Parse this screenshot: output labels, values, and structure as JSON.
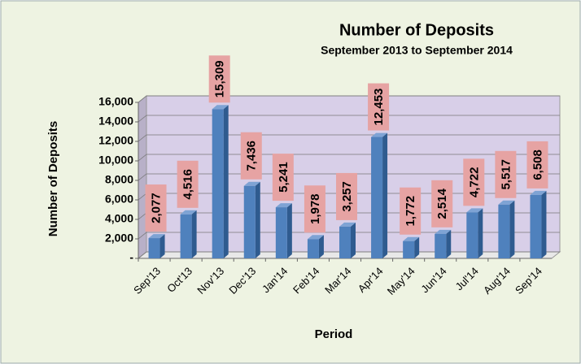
{
  "chart_data": {
    "type": "bar",
    "title": "Number of Deposits",
    "subtitle": "September 2013 to September 2014",
    "x_label": "Period",
    "y_label": "Number of Deposits",
    "categories": [
      "Sep'13",
      "Oct'13",
      "Nov'13",
      "Dec'13",
      "Jan'14",
      "Feb'14",
      "Mar'14",
      "Apr'14",
      "May'14",
      "Jun'14",
      "Jul'14",
      "Aug'14",
      "Sep'14"
    ],
    "values": [
      2077,
      4516,
      15309,
      7436,
      5241,
      1978,
      3257,
      12453,
      1772,
      2514,
      4722,
      5517,
      6508
    ],
    "value_labels": [
      "2,077",
      "4,516",
      "15,309",
      "7,436",
      "5,241",
      "1,978",
      "3,257",
      "12,453",
      "1,772",
      "2,514",
      "4,722",
      "5,517",
      "6,508"
    ],
    "color": "#4f81bd",
    "ylim": [
      0,
      16000
    ],
    "yticks": [
      {
        "value": 0,
        "label": "-"
      },
      {
        "value": 2000,
        "label": "2,000"
      },
      {
        "value": 4000,
        "label": "4,000"
      },
      {
        "value": 6000,
        "label": "6,000"
      },
      {
        "value": 8000,
        "label": "8,000"
      },
      {
        "value": 10000,
        "label": "10,000"
      },
      {
        "value": 12000,
        "label": "12,000"
      },
      {
        "value": 14000,
        "label": "14,000"
      },
      {
        "value": 16000,
        "label": "16,000"
      }
    ],
    "grid": true
  }
}
